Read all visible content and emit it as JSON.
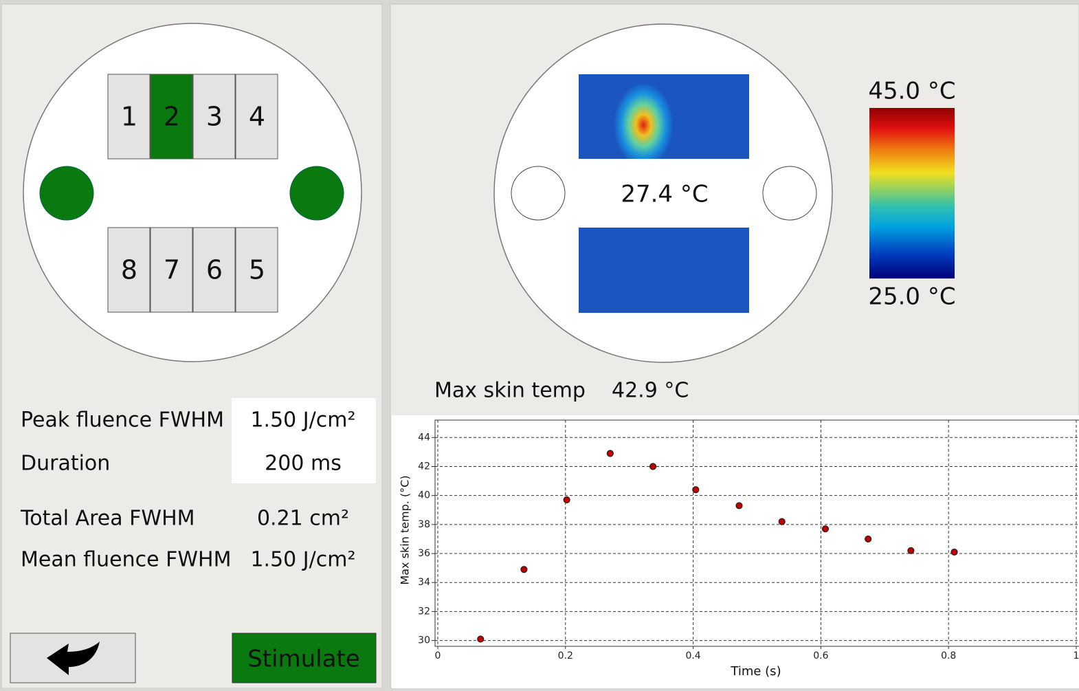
{
  "stimulator": {
    "top_row": [
      {
        "label": 1,
        "active": false
      },
      {
        "label": 2,
        "active": true
      },
      {
        "label": 3,
        "active": false
      },
      {
        "label": 4,
        "active": false
      }
    ],
    "bottom_row": [
      {
        "label": 8,
        "active": false
      },
      {
        "label": 7,
        "active": false
      },
      {
        "label": 6,
        "active": false
      },
      {
        "label": 5,
        "active": false
      }
    ]
  },
  "fields": [
    {
      "label": "Peak fluence FWHM",
      "value": "1.50 J/cm²"
    },
    {
      "label": "Duration",
      "value": "200 ms"
    },
    {
      "label": "Total Area FWHM",
      "value": "0.21 cm²"
    },
    {
      "label": "Mean fluence FWHM",
      "value": "1.50 J/cm²"
    }
  ],
  "buttons": {
    "stimulate": "Stimulate"
  },
  "thermal": {
    "center_temp": "27.4 °C",
    "scale_max": "45.0 °C",
    "scale_min": "25.0 °C",
    "max_skin_temp_label": "Max skin temp",
    "max_skin_temp_value": "42.9 °C"
  },
  "chart_data": {
    "type": "scatter",
    "x_label": "Time (s)",
    "y_label": "Max skin temp. (°C)",
    "series": [
      {
        "color": "#c00000",
        "x": [
          0.067,
          0.135,
          0.202,
          0.27,
          0.337,
          0.404,
          0.472,
          0.539,
          0.607,
          0.674,
          0.741,
          0.809
        ],
        "values": [
          30.1,
          34.9,
          39.7,
          42.9,
          42.0,
          40.4,
          39.3,
          38.2,
          37.7,
          37.0,
          36.2,
          36.1
        ]
      }
    ],
    "xlim": [
      0,
      1
    ],
    "xticks": [
      0,
      0.2,
      0.4,
      0.6,
      0.8,
      1
    ],
    "ylim": [
      29.6,
      45.2
    ],
    "yticks": [
      30,
      32,
      34,
      36,
      38,
      40,
      42,
      44
    ],
    "grid": true
  }
}
